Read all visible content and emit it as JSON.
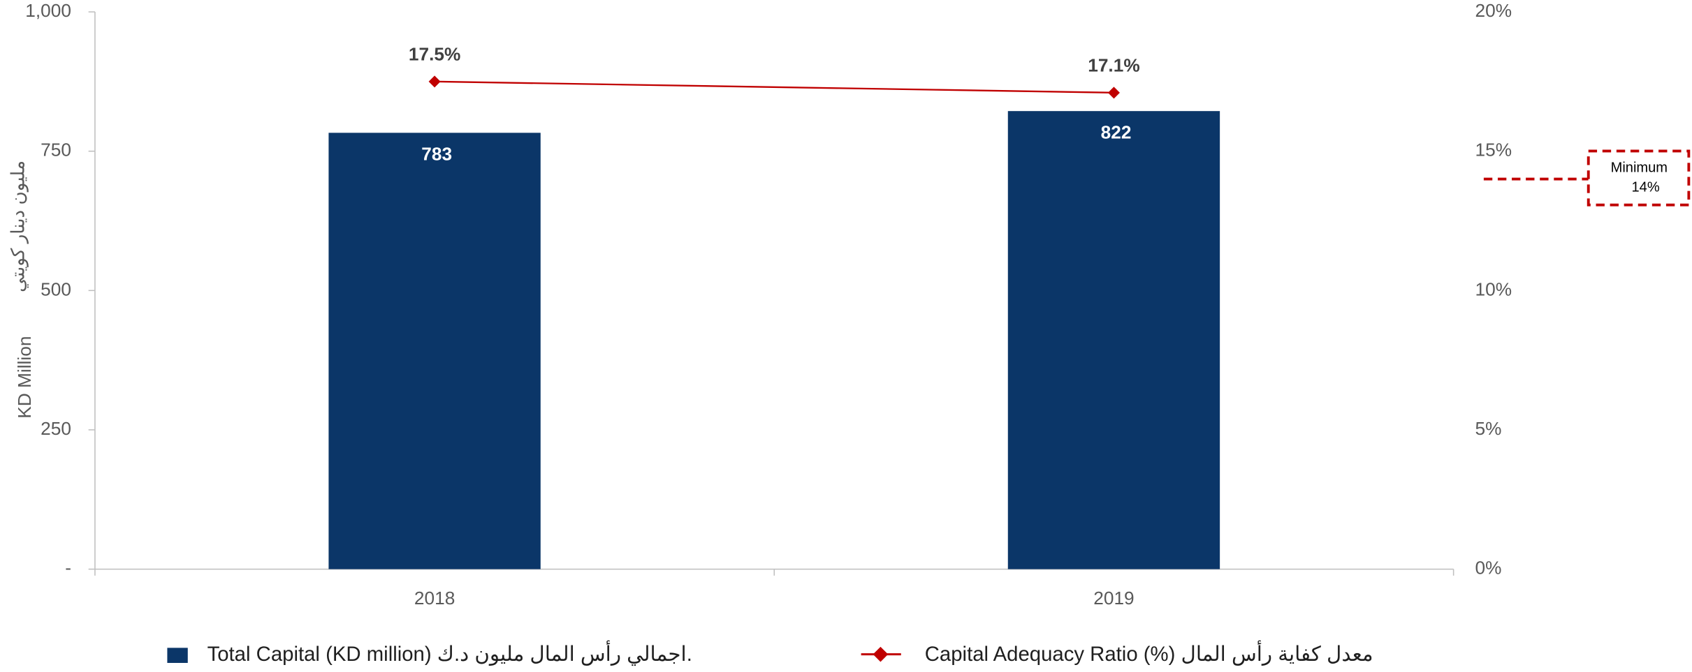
{
  "chart_data": {
    "type": "bar_line",
    "categories": [
      "2018",
      "2019"
    ],
    "series": [
      {
        "name": "Total Capital (KD million)  اجمالي رأس المال مليون د.ك.",
        "type": "bar",
        "color": "#0b3668",
        "values": [
          783,
          822
        ]
      },
      {
        "name": "Capital Adequacy Ratio (%) معدل كفاية رأس المال",
        "type": "line",
        "axis": "y2",
        "color": "#c00000",
        "values": [
          17.5,
          17.1
        ],
        "value_labels": [
          "17.5%",
          "17.1%"
        ]
      }
    ],
    "y_label": "KD Million",
    "y_label_ar": "مليون دينار كويتي",
    "ylim": [
      0,
      1000
    ],
    "yticks": [
      {
        "value": 0,
        "label": "-"
      },
      250,
      500,
      750,
      {
        "value": 1000,
        "label": "1,000"
      }
    ],
    "y2lim": [
      0,
      20
    ],
    "y2ticks": [
      {
        "value": 0,
        "label": "0%"
      },
      {
        "value": 5,
        "label": "5%"
      },
      {
        "value": 10,
        "label": "10%"
      },
      {
        "value": 15,
        "label": "15%"
      },
      {
        "value": 20,
        "label": "20%"
      }
    ],
    "threshold": {
      "value": 14,
      "label_lines": [
        "Minimum",
        "14%"
      ],
      "color": "#c00000"
    }
  }
}
